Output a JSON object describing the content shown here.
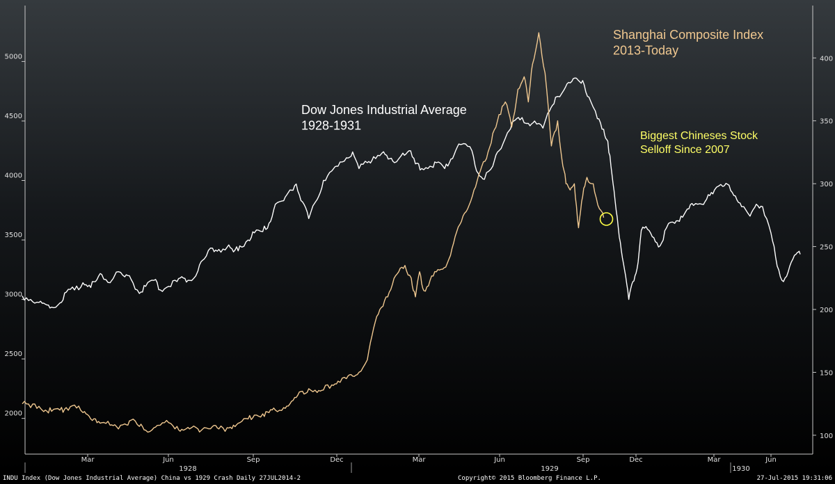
{
  "chart_data": {
    "type": "line",
    "title": "",
    "x_axis": {
      "month_ticks": [
        "Mar",
        "Jun",
        "Sep",
        "Dec",
        "Mar",
        "Jun",
        "Sep",
        "Dec",
        "Mar",
        "Jun"
      ],
      "year_labels": [
        "1928",
        "1929",
        "1930"
      ]
    },
    "left_axis": {
      "ylim": [
        1700,
        5400
      ],
      "ticks": [
        2000,
        2500,
        3000,
        3500,
        4000,
        4500,
        5000
      ]
    },
    "right_axis": {
      "ylim": [
        85,
        435
      ],
      "ticks": [
        100,
        150,
        200,
        250,
        300,
        350,
        400
      ]
    },
    "grid": false,
    "series": [
      {
        "name": "Dow Jones Industrial Average 1928-1931",
        "axis": "left",
        "color": "#ffffff",
        "points": [
          [
            0.0,
            3030
          ],
          [
            0.04,
            3000
          ],
          [
            0.08,
            2975
          ],
          [
            0.11,
            2960
          ],
          [
            0.14,
            2935
          ],
          [
            0.18,
            2970
          ],
          [
            0.21,
            3060
          ],
          [
            0.25,
            3080
          ],
          [
            0.29,
            3140
          ],
          [
            0.32,
            3120
          ],
          [
            0.35,
            3150
          ],
          [
            0.38,
            3210
          ],
          [
            0.42,
            3140
          ],
          [
            0.45,
            3230
          ],
          [
            0.49,
            3190
          ],
          [
            0.52,
            3170
          ],
          [
            0.56,
            3050
          ],
          [
            0.59,
            3110
          ],
          [
            0.63,
            3160
          ],
          [
            0.66,
            3080
          ],
          [
            0.7,
            3110
          ],
          [
            0.74,
            3150
          ],
          [
            0.77,
            3180
          ],
          [
            0.8,
            3160
          ],
          [
            0.84,
            3240
          ],
          [
            0.87,
            3340
          ],
          [
            0.91,
            3430
          ],
          [
            0.94,
            3420
          ],
          [
            0.98,
            3440
          ],
          [
            1.01,
            3400
          ],
          [
            1.04,
            3450
          ],
          [
            1.08,
            3500
          ],
          [
            1.11,
            3560
          ],
          [
            1.15,
            3570
          ],
          [
            1.18,
            3640
          ],
          [
            1.21,
            3800
          ],
          [
            1.25,
            3830
          ],
          [
            1.28,
            3920
          ],
          [
            1.31,
            3970
          ],
          [
            1.34,
            3820
          ],
          [
            1.37,
            3680
          ],
          [
            1.41,
            3840
          ],
          [
            1.44,
            4000
          ],
          [
            1.48,
            4080
          ],
          [
            1.51,
            4120
          ],
          [
            1.55,
            4190
          ],
          [
            1.58,
            4240
          ],
          [
            1.61,
            4100
          ],
          [
            1.65,
            4150
          ],
          [
            1.68,
            4200
          ],
          [
            1.72,
            4230
          ],
          [
            1.75,
            4180
          ],
          [
            1.78,
            4150
          ],
          [
            1.82,
            4230
          ],
          [
            1.85,
            4250
          ],
          [
            1.88,
            4140
          ],
          [
            1.91,
            4100
          ],
          [
            1.95,
            4120
          ],
          [
            1.98,
            4150
          ],
          [
            2.02,
            4100
          ],
          [
            2.05,
            4180
          ],
          [
            2.08,
            4280
          ],
          [
            2.11,
            4310
          ],
          [
            2.15,
            4250
          ],
          [
            2.18,
            4060
          ],
          [
            2.21,
            4010
          ],
          [
            2.25,
            4120
          ],
          [
            2.28,
            4250
          ],
          [
            2.32,
            4400
          ],
          [
            2.35,
            4500
          ],
          [
            2.38,
            4510
          ],
          [
            2.42,
            4480
          ],
          [
            2.45,
            4500
          ],
          [
            2.49,
            4440
          ],
          [
            2.52,
            4580
          ],
          [
            2.55,
            4700
          ],
          [
            2.59,
            4760
          ],
          [
            2.62,
            4820
          ],
          [
            2.65,
            4860
          ],
          [
            2.68,
            4840
          ],
          [
            2.71,
            4700
          ],
          [
            2.75,
            4520
          ],
          [
            2.78,
            4430
          ],
          [
            2.8,
            4330
          ],
          [
            2.82,
            4050
          ],
          [
            2.84,
            3750
          ],
          [
            2.86,
            3480
          ],
          [
            2.88,
            3250
          ],
          [
            2.9,
            3000
          ],
          [
            2.92,
            3150
          ],
          [
            2.94,
            3260
          ],
          [
            2.96,
            3580
          ],
          [
            2.99,
            3590
          ],
          [
            3.02,
            3520
          ],
          [
            3.05,
            3450
          ],
          [
            3.08,
            3600
          ],
          [
            3.12,
            3640
          ],
          [
            3.15,
            3700
          ],
          [
            3.18,
            3760
          ],
          [
            3.21,
            3790
          ],
          [
            3.25,
            3800
          ],
          [
            3.28,
            3880
          ],
          [
            3.31,
            3920
          ],
          [
            3.35,
            3950
          ],
          [
            3.38,
            3960
          ],
          [
            3.41,
            3870
          ],
          [
            3.44,
            3780
          ],
          [
            3.48,
            3700
          ],
          [
            3.51,
            3800
          ],
          [
            3.54,
            3780
          ],
          [
            3.58,
            3560
          ],
          [
            3.61,
            3280
          ],
          [
            3.64,
            3150
          ],
          [
            3.67,
            3280
          ],
          [
            3.7,
            3380
          ],
          [
            3.72,
            3380
          ]
        ]
      },
      {
        "name": "Shanghai Composite Index 2013-Today",
        "axis": "right",
        "color": "#f0c890",
        "points": [
          [
            0.0,
            125
          ],
          [
            0.04,
            122
          ],
          [
            0.08,
            123
          ],
          [
            0.11,
            120
          ],
          [
            0.14,
            119
          ],
          [
            0.18,
            120
          ],
          [
            0.21,
            122
          ],
          [
            0.25,
            124
          ],
          [
            0.29,
            118
          ],
          [
            0.32,
            115
          ],
          [
            0.35,
            113
          ],
          [
            0.38,
            110
          ],
          [
            0.42,
            108
          ],
          [
            0.45,
            107
          ],
          [
            0.49,
            109
          ],
          [
            0.52,
            112
          ],
          [
            0.56,
            107
          ],
          [
            0.59,
            104
          ],
          [
            0.63,
            106
          ],
          [
            0.66,
            108
          ],
          [
            0.7,
            110
          ],
          [
            0.74,
            107
          ],
          [
            0.77,
            104
          ],
          [
            0.8,
            105
          ],
          [
            0.84,
            105
          ],
          [
            0.87,
            106
          ],
          [
            0.91,
            107
          ],
          [
            0.94,
            105
          ],
          [
            0.98,
            106
          ],
          [
            1.01,
            108
          ],
          [
            1.04,
            110
          ],
          [
            1.08,
            113
          ],
          [
            1.11,
            116
          ],
          [
            1.15,
            117
          ],
          [
            1.18,
            118
          ],
          [
            1.21,
            120
          ],
          [
            1.25,
            122
          ],
          [
            1.28,
            125
          ],
          [
            1.31,
            130
          ],
          [
            1.34,
            135
          ],
          [
            1.37,
            137
          ],
          [
            1.41,
            134
          ],
          [
            1.44,
            136
          ],
          [
            1.48,
            140
          ],
          [
            1.51,
            143
          ],
          [
            1.55,
            145
          ],
          [
            1.58,
            147
          ],
          [
            1.61,
            150
          ],
          [
            1.65,
            160
          ],
          [
            1.68,
            185
          ],
          [
            1.71,
            200
          ],
          [
            1.74,
            210
          ],
          [
            1.77,
            220
          ],
          [
            1.8,
            230
          ],
          [
            1.83,
            235
          ],
          [
            1.86,
            225
          ],
          [
            1.88,
            210
          ],
          [
            1.9,
            230
          ],
          [
            1.92,
            215
          ],
          [
            1.95,
            223
          ],
          [
            1.98,
            230
          ],
          [
            2.01,
            232
          ],
          [
            2.04,
            240
          ],
          [
            2.07,
            258
          ],
          [
            2.1,
            270
          ],
          [
            2.13,
            280
          ],
          [
            2.16,
            295
          ],
          [
            2.19,
            310
          ],
          [
            2.22,
            320
          ],
          [
            2.25,
            340
          ],
          [
            2.28,
            355
          ],
          [
            2.31,
            365
          ],
          [
            2.34,
            345
          ],
          [
            2.37,
            375
          ],
          [
            2.4,
            385
          ],
          [
            2.42,
            365
          ],
          [
            2.44,
            395
          ],
          [
            2.47,
            420
          ],
          [
            2.5,
            388
          ],
          [
            2.53,
            330
          ],
          [
            2.56,
            350
          ],
          [
            2.58,
            320
          ],
          [
            2.6,
            300
          ],
          [
            2.62,
            295
          ],
          [
            2.64,
            300
          ],
          [
            2.66,
            265
          ],
          [
            2.68,
            290
          ],
          [
            2.7,
            305
          ],
          [
            2.73,
            300
          ],
          [
            2.76,
            280
          ],
          [
            2.78,
            273
          ]
        ]
      }
    ],
    "annotations": [
      {
        "text_lines": [
          "Dow Jones Industrial Average",
          "1928-1931"
        ],
        "color": "#ffffff"
      },
      {
        "text_lines": [
          "Shanghai Composite Index",
          "2013-Today"
        ],
        "color": "#f0c890"
      },
      {
        "text_lines": [
          "Biggest Chineses Stock",
          "Selloff Since 2007"
        ],
        "color": "#ffff66"
      }
    ]
  },
  "footer": {
    "left": "INDU Index (Dow Jones Industrial Average) China vs 1929 Crash  Daily 27JUL2014-2",
    "center": "Copyright© 2015 Bloomberg Finance L.P.",
    "right": "27-Jul-2015 19:31:06"
  }
}
